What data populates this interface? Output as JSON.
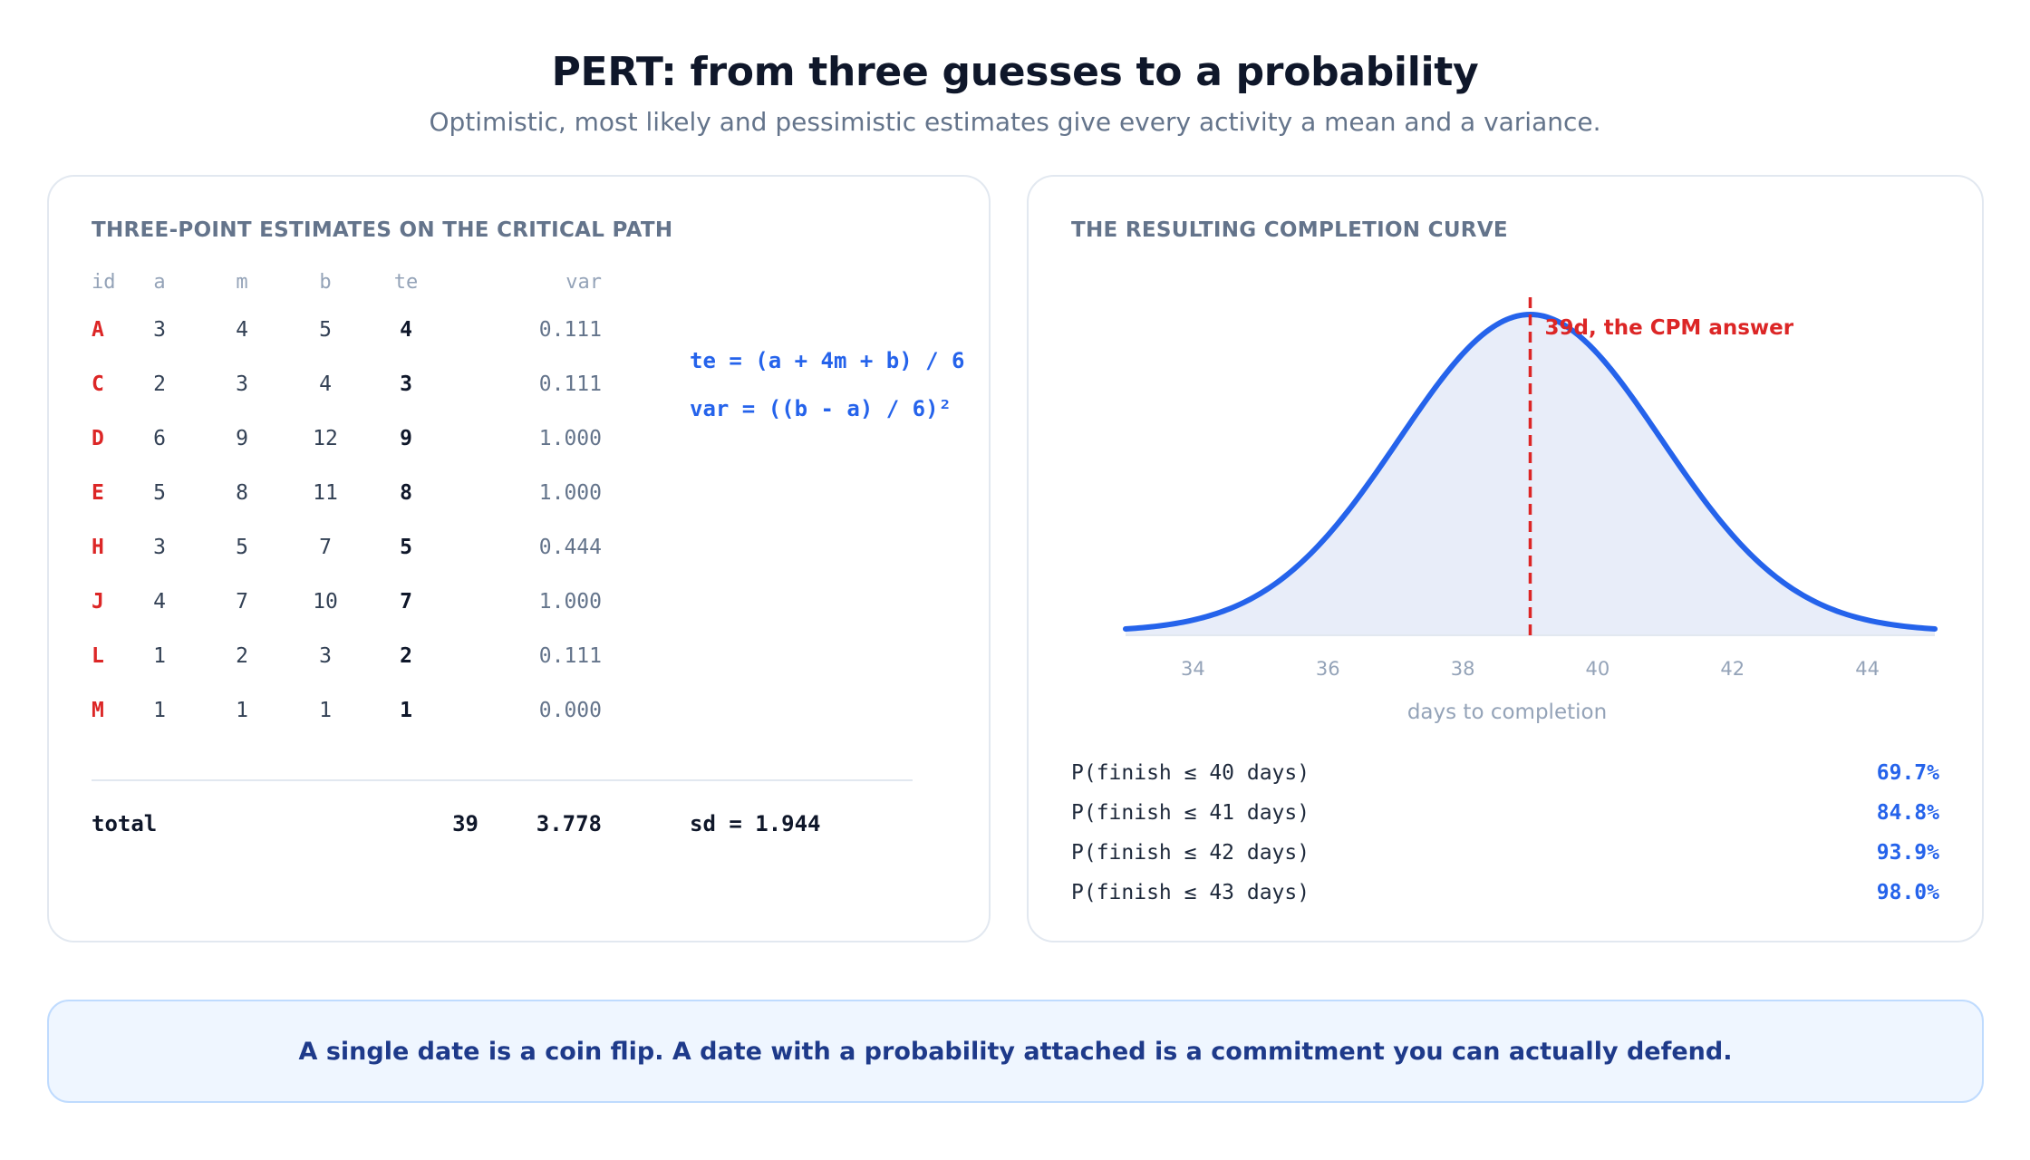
{
  "title": "PERT: from three guesses to a probability",
  "subtitle": "Optimistic, most likely and pessimistic estimates give every activity a mean and a variance.",
  "left_panel": {
    "heading": "THREE-POINT ESTIMATES ON THE CRITICAL PATH",
    "columns": [
      "id",
      "a",
      "m",
      "b",
      "te",
      "var"
    ],
    "rows": [
      {
        "id": "A",
        "a": "3",
        "m": "4",
        "b": "5",
        "te": "4",
        "var": "0.111"
      },
      {
        "id": "C",
        "a": "2",
        "m": "3",
        "b": "4",
        "te": "3",
        "var": "0.111"
      },
      {
        "id": "D",
        "a": "6",
        "m": "9",
        "b": "12",
        "te": "9",
        "var": "1.000"
      },
      {
        "id": "E",
        "a": "5",
        "m": "8",
        "b": "11",
        "te": "8",
        "var": "1.000"
      },
      {
        "id": "H",
        "a": "3",
        "m": "5",
        "b": "7",
        "te": "5",
        "var": "0.444"
      },
      {
        "id": "J",
        "a": "4",
        "m": "7",
        "b": "10",
        "te": "7",
        "var": "1.000"
      },
      {
        "id": "L",
        "a": "1",
        "m": "2",
        "b": "3",
        "te": "2",
        "var": "0.111"
      },
      {
        "id": "M",
        "a": "1",
        "m": "1",
        "b": "1",
        "te": "1",
        "var": "0.000"
      }
    ],
    "formulas": [
      "te = (a + 4m + b) / 6",
      "var = ((b - a) / 6)²"
    ],
    "total": {
      "label": "total",
      "te": "39",
      "var": "3.778",
      "sd": "sd = 1.944"
    }
  },
  "right_panel": {
    "heading": "THE RESULTING COMPLETION CURVE",
    "probabilities": [
      {
        "label": "P(finish ≤ 40 days)",
        "value": "69.7%"
      },
      {
        "label": "P(finish ≤ 41 days)",
        "value": "84.8%"
      },
      {
        "label": "P(finish ≤ 42 days)",
        "value": "93.9%"
      },
      {
        "label": "P(finish ≤ 43 days)",
        "value": "98.0%"
      }
    ]
  },
  "chart_data": {
    "type": "area",
    "distribution": "normal",
    "mean": 39,
    "sd": 1.944,
    "xlabel": "days to completion",
    "xlim": [
      33,
      45
    ],
    "x_ticks": [
      34,
      36,
      38,
      40,
      42,
      44
    ],
    "grid": false,
    "marker": {
      "x": 39,
      "label": "39d, the CPM answer",
      "style": "dashed",
      "color": "#dc2626"
    },
    "line_color": "#2563eb",
    "fill_color": "#e8edf9"
  },
  "banner": {
    "text": "A single date is a coin flip. A date with a probability attached is a commitment you can actually defend."
  }
}
